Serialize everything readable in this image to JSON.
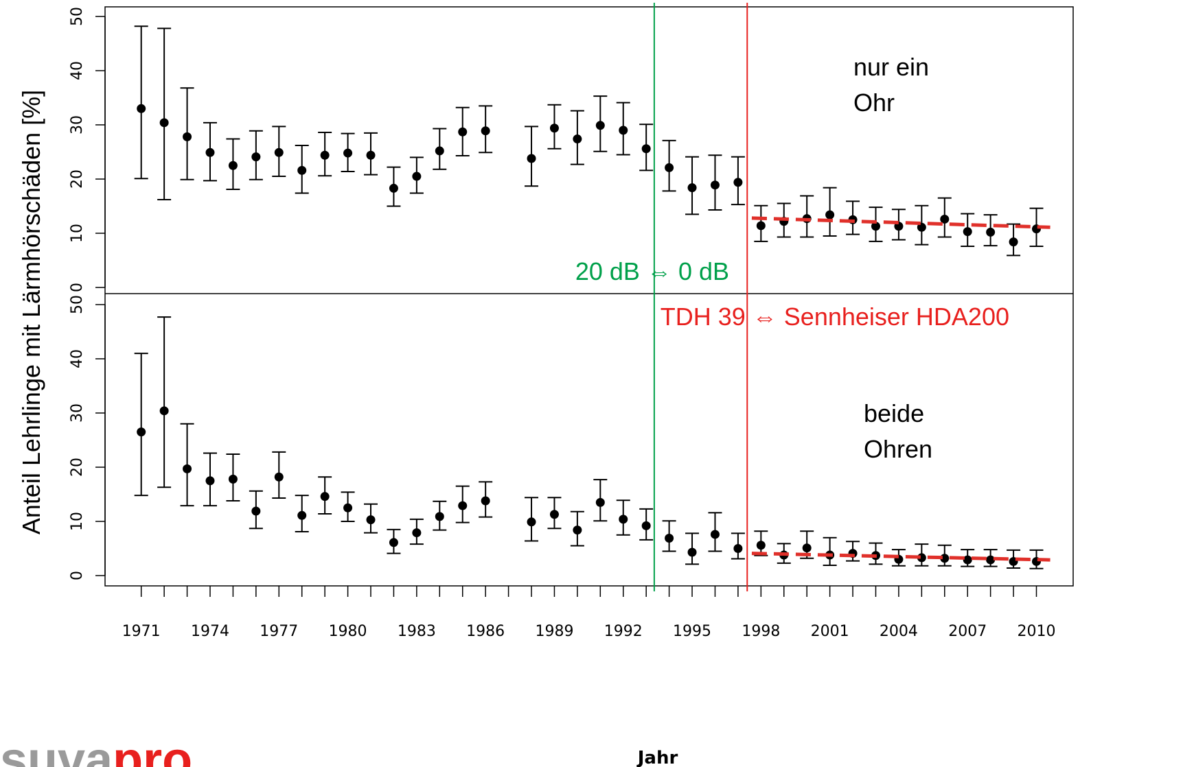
{
  "chart_data": {
    "type": "scatter",
    "xlabel": "Jahr",
    "ylabel": "Anteil Lehrlinge mit Lärmhörschäden [%]",
    "x_tick_labels": [
      "1971",
      "1974",
      "1977",
      "1980",
      "1983",
      "1986",
      "1989",
      "1992",
      "1995",
      "1998",
      "2001",
      "2004",
      "2007",
      "2010"
    ],
    "xlim": [
      1969.6,
      2011.6
    ],
    "vlines": [
      {
        "x": 1993.35,
        "label": "20 dB ⇔ 0 dB",
        "color": "#00a04a"
      },
      {
        "x": 1997.4,
        "label": "TDH 39 ⇔ Sennheiser HDA200",
        "color": "#e8201e"
      }
    ],
    "panels": [
      {
        "label_lines": [
          "nur ein",
          "Ohr"
        ],
        "ylim": [
          0,
          50
        ],
        "y_ticks": [
          0,
          10,
          20,
          30,
          40,
          50
        ],
        "y_tick_labels": [
          "0",
          "10",
          "20",
          "30",
          "40",
          "50"
        ],
        "points": [
          {
            "x": 1971,
            "y": 33.0,
            "lo": 20.1,
            "hi": 48.2
          },
          {
            "x": 1972,
            "y": 30.4,
            "lo": 16.2,
            "hi": 47.8
          },
          {
            "x": 1973,
            "y": 27.8,
            "lo": 19.9,
            "hi": 36.8
          },
          {
            "x": 1974,
            "y": 24.9,
            "lo": 19.7,
            "hi": 30.4
          },
          {
            "x": 1975,
            "y": 22.5,
            "lo": 18.1,
            "hi": 27.4
          },
          {
            "x": 1976,
            "y": 24.1,
            "lo": 19.9,
            "hi": 28.9
          },
          {
            "x": 1977,
            "y": 24.9,
            "lo": 20.5,
            "hi": 29.7
          },
          {
            "x": 1978,
            "y": 21.6,
            "lo": 17.4,
            "hi": 26.2
          },
          {
            "x": 1979,
            "y": 24.4,
            "lo": 20.6,
            "hi": 28.6
          },
          {
            "x": 1980,
            "y": 24.8,
            "lo": 21.4,
            "hi": 28.4
          },
          {
            "x": 1981,
            "y": 24.4,
            "lo": 20.8,
            "hi": 28.5
          },
          {
            "x": 1982,
            "y": 18.3,
            "lo": 15.0,
            "hi": 22.2
          },
          {
            "x": 1983,
            "y": 20.5,
            "lo": 17.4,
            "hi": 24.0
          },
          {
            "x": 1984,
            "y": 25.2,
            "lo": 21.8,
            "hi": 29.3
          },
          {
            "x": 1985,
            "y": 28.7,
            "lo": 24.3,
            "hi": 33.2
          },
          {
            "x": 1986,
            "y": 28.9,
            "lo": 24.9,
            "hi": 33.5
          },
          {
            "x": 1988,
            "y": 23.8,
            "lo": 18.7,
            "hi": 29.7
          },
          {
            "x": 1989,
            "y": 29.4,
            "lo": 25.6,
            "hi": 33.7
          },
          {
            "x": 1990,
            "y": 27.4,
            "lo": 22.7,
            "hi": 32.6
          },
          {
            "x": 1991,
            "y": 29.9,
            "lo": 25.1,
            "hi": 35.3
          },
          {
            "x": 1992,
            "y": 29.0,
            "lo": 24.5,
            "hi": 34.1
          },
          {
            "x": 1993,
            "y": 25.6,
            "lo": 21.6,
            "hi": 30.1
          },
          {
            "x": 1994,
            "y": 22.1,
            "lo": 17.8,
            "hi": 27.1
          },
          {
            "x": 1995,
            "y": 18.4,
            "lo": 13.5,
            "hi": 24.1
          },
          {
            "x": 1996,
            "y": 18.9,
            "lo": 14.3,
            "hi": 24.4
          },
          {
            "x": 1997,
            "y": 19.4,
            "lo": 15.3,
            "hi": 24.1
          },
          {
            "x": 1998,
            "y": 11.4,
            "lo": 8.5,
            "hi": 15.1
          },
          {
            "x": 1999,
            "y": 12.2,
            "lo": 9.3,
            "hi": 15.5
          },
          {
            "x": 2000,
            "y": 12.7,
            "lo": 9.3,
            "hi": 16.9
          },
          {
            "x": 2001,
            "y": 13.4,
            "lo": 9.5,
            "hi": 18.4
          },
          {
            "x": 2002,
            "y": 12.5,
            "lo": 9.8,
            "hi": 15.9
          },
          {
            "x": 2003,
            "y": 11.3,
            "lo": 8.5,
            "hi": 14.8
          },
          {
            "x": 2004,
            "y": 11.3,
            "lo": 8.8,
            "hi": 14.4
          },
          {
            "x": 2005,
            "y": 11.1,
            "lo": 7.9,
            "hi": 15.1
          },
          {
            "x": 2006,
            "y": 12.6,
            "lo": 9.3,
            "hi": 16.5
          },
          {
            "x": 2007,
            "y": 10.3,
            "lo": 7.6,
            "hi": 13.6
          },
          {
            "x": 2008,
            "y": 10.2,
            "lo": 7.7,
            "hi": 13.4
          },
          {
            "x": 2009,
            "y": 8.4,
            "lo": 5.9,
            "hi": 11.7
          },
          {
            "x": 2010,
            "y": 10.8,
            "lo": 7.6,
            "hi": 14.6
          }
        ],
        "trend": {
          "x": [
            1997.6,
            2010.6
          ],
          "y": [
            12.8,
            11.1
          ]
        }
      },
      {
        "label_lines": [
          "beide",
          "Ohren"
        ],
        "ylim": [
          0,
          50
        ],
        "y_ticks": [
          0,
          10,
          20,
          30,
          40,
          50
        ],
        "y_tick_labels": [
          "0",
          "10",
          "20",
          "30",
          "40",
          "50"
        ],
        "points": [
          {
            "x": 1971,
            "y": 26.5,
            "lo": 14.8,
            "hi": 41.0
          },
          {
            "x": 1972,
            "y": 30.4,
            "lo": 16.3,
            "hi": 47.7
          },
          {
            "x": 1973,
            "y": 19.7,
            "lo": 12.9,
            "hi": 28.0
          },
          {
            "x": 1974,
            "y": 17.5,
            "lo": 12.9,
            "hi": 22.6
          },
          {
            "x": 1975,
            "y": 17.8,
            "lo": 13.8,
            "hi": 22.4
          },
          {
            "x": 1976,
            "y": 11.9,
            "lo": 8.7,
            "hi": 15.6
          },
          {
            "x": 1977,
            "y": 18.2,
            "lo": 14.3,
            "hi": 22.8
          },
          {
            "x": 1978,
            "y": 11.1,
            "lo": 8.1,
            "hi": 14.8
          },
          {
            "x": 1979,
            "y": 14.6,
            "lo": 11.4,
            "hi": 18.2
          },
          {
            "x": 1980,
            "y": 12.5,
            "lo": 10.0,
            "hi": 15.4
          },
          {
            "x": 1981,
            "y": 10.3,
            "lo": 7.9,
            "hi": 13.2
          },
          {
            "x": 1982,
            "y": 6.1,
            "lo": 4.1,
            "hi": 8.5
          },
          {
            "x": 1983,
            "y": 7.9,
            "lo": 5.8,
            "hi": 10.4
          },
          {
            "x": 1984,
            "y": 10.9,
            "lo": 8.4,
            "hi": 13.7
          },
          {
            "x": 1985,
            "y": 12.9,
            "lo": 9.8,
            "hi": 16.5
          },
          {
            "x": 1986,
            "y": 13.8,
            "lo": 10.8,
            "hi": 17.3
          },
          {
            "x": 1988,
            "y": 9.9,
            "lo": 6.4,
            "hi": 14.4
          },
          {
            "x": 1989,
            "y": 11.3,
            "lo": 8.7,
            "hi": 14.4
          },
          {
            "x": 1990,
            "y": 8.4,
            "lo": 5.5,
            "hi": 11.8
          },
          {
            "x": 1991,
            "y": 13.5,
            "lo": 10.1,
            "hi": 17.7
          },
          {
            "x": 1992,
            "y": 10.4,
            "lo": 7.5,
            "hi": 13.9
          },
          {
            "x": 1993,
            "y": 9.2,
            "lo": 6.6,
            "hi": 12.3
          },
          {
            "x": 1994,
            "y": 6.9,
            "lo": 4.5,
            "hi": 10.1
          },
          {
            "x": 1995,
            "y": 4.3,
            "lo": 2.1,
            "hi": 7.8
          },
          {
            "x": 1996,
            "y": 7.6,
            "lo": 4.5,
            "hi": 11.6
          },
          {
            "x": 1997,
            "y": 5.0,
            "lo": 3.1,
            "hi": 7.8
          },
          {
            "x": 1998,
            "y": 5.6,
            "lo": 3.7,
            "hi": 8.2
          },
          {
            "x": 1999,
            "y": 3.8,
            "lo": 2.3,
            "hi": 5.9
          },
          {
            "x": 2000,
            "y": 5.1,
            "lo": 3.2,
            "hi": 8.2
          },
          {
            "x": 2001,
            "y": 3.8,
            "lo": 1.9,
            "hi": 7.0
          },
          {
            "x": 2002,
            "y": 4.1,
            "lo": 2.7,
            "hi": 6.3
          },
          {
            "x": 2003,
            "y": 3.7,
            "lo": 2.1,
            "hi": 6.0
          },
          {
            "x": 2004,
            "y": 3.0,
            "lo": 1.8,
            "hi": 4.8
          },
          {
            "x": 2005,
            "y": 3.3,
            "lo": 1.8,
            "hi": 5.8
          },
          {
            "x": 2006,
            "y": 3.2,
            "lo": 1.8,
            "hi": 5.6
          },
          {
            "x": 2007,
            "y": 2.9,
            "lo": 1.7,
            "hi": 4.8
          },
          {
            "x": 2008,
            "y": 2.9,
            "lo": 1.7,
            "hi": 4.8
          },
          {
            "x": 2009,
            "y": 2.6,
            "lo": 1.4,
            "hi": 4.7
          },
          {
            "x": 2010,
            "y": 2.6,
            "lo": 1.3,
            "hi": 4.7
          }
        ],
        "trend": {
          "x": [
            1997.6,
            2010.6
          ],
          "y": [
            4.1,
            2.9
          ]
        }
      }
    ],
    "trend_color": "#e0302a",
    "point_color": "#000000"
  },
  "logo": {
    "text_main": "suva",
    "text_accent": "pro",
    "color_main": "#9a9a9a",
    "color_accent": "#e8201e"
  }
}
